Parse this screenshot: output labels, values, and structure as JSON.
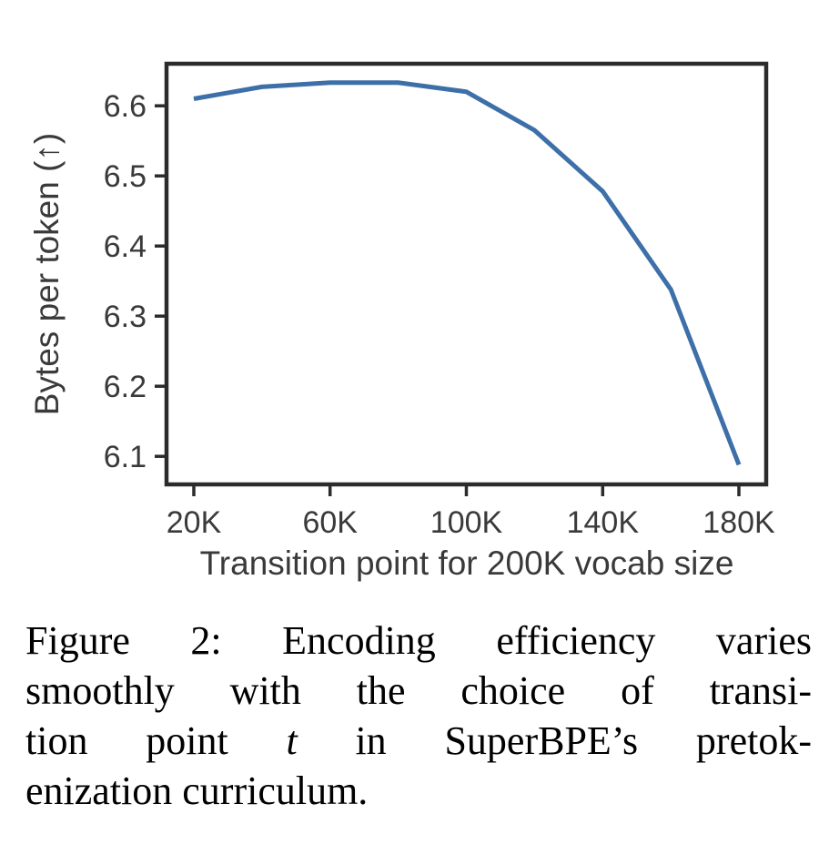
{
  "chart_data": {
    "type": "line",
    "x": [
      20000,
      40000,
      60000,
      80000,
      100000,
      120000,
      140000,
      160000,
      180000
    ],
    "y": [
      6.61,
      6.627,
      6.633,
      6.633,
      6.62,
      6.565,
      6.478,
      6.338,
      6.088
    ],
    "xlabel": "Transition point for 200K vocab size",
    "ylabel": "Bytes per token (↑)",
    "xticks": {
      "values": [
        20000,
        60000,
        100000,
        140000,
        180000
      ],
      "labels": [
        "20K",
        "60K",
        "100K",
        "140K",
        "180K"
      ]
    },
    "yticks": {
      "values": [
        6.6,
        6.5,
        6.4,
        6.3,
        6.2,
        6.1
      ],
      "labels": [
        "6.6",
        "6.5",
        "6.4",
        "6.3",
        "6.2",
        "6.1"
      ]
    },
    "xlim": [
      12000,
      188000
    ],
    "ylim": [
      6.06,
      6.66
    ],
    "grid": false,
    "legend": null,
    "title": ""
  },
  "colors": {
    "line": "#3d6fa8",
    "spine": "#2b2b2b",
    "tick_text": "#3a3a3a",
    "caption_text": "#000000",
    "background": "#ffffff"
  },
  "caption": {
    "label": "Figure 2:",
    "full_text": "Figure 2: Encoding efficiency varies smoothly with the choice of transition point t in SuperBPE’s pretokenization curriculum.",
    "lines": [
      {
        "segments": [
          {
            "text": "Figure 2: Encoding efficiency varies",
            "style": "normal"
          }
        ]
      },
      {
        "segments": [
          {
            "text": "smoothly with the choice of transi-",
            "style": "normal"
          }
        ]
      },
      {
        "segments": [
          {
            "text": "tion point ",
            "style": "normal"
          },
          {
            "text": "t",
            "style": "italic"
          },
          {
            "text": " in SuperBPE’s pretok-",
            "style": "normal"
          }
        ]
      },
      {
        "segments": [
          {
            "text": "enization curriculum.",
            "style": "normal"
          }
        ]
      }
    ]
  }
}
